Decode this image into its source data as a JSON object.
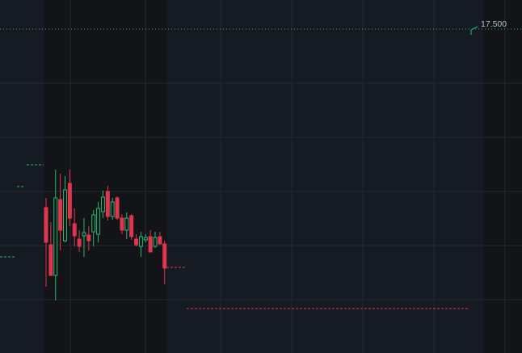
{
  "chart_data": {
    "type": "candlestick",
    "up_color": "#2bb673",
    "down_color": "#e0354f",
    "ylim": [
      15.495,
      17.68
    ],
    "price_line": {
      "value": 17.5,
      "label": "17.500"
    },
    "open": [
      16.395,
      16.165,
      15.975,
      16.445,
      16.19,
      16.545,
      16.295,
      16.2,
      16.22,
      16.225,
      16.245,
      16.23,
      16.37,
      16.495,
      16.34,
      16.455,
      16.33,
      16.255,
      16.345,
      16.2,
      16.155,
      16.195,
      16.215,
      16.155,
      16.215,
      16.17
    ],
    "high": [
      16.455,
      16.305,
      16.63,
      16.605,
      16.59,
      16.63,
      16.39,
      16.255,
      16.33,
      16.28,
      16.38,
      16.43,
      16.5,
      16.53,
      16.455,
      16.465,
      16.355,
      16.365,
      16.355,
      16.23,
      16.245,
      16.23,
      16.255,
      16.245,
      16.245,
      16.19
    ],
    "low": [
      15.905,
      15.975,
      15.82,
      16.13,
      16.18,
      16.28,
      16.155,
      16.12,
      16.09,
      16.13,
      16.155,
      16.18,
      16.33,
      16.315,
      16.32,
      16.32,
      16.23,
      16.2,
      16.195,
      16.155,
      16.09,
      16.18,
      16.12,
      16.145,
      16.165,
      15.92
    ],
    "close": [
      16.18,
      15.975,
      16.455,
      16.255,
      16.505,
      16.33,
      16.22,
      16.155,
      16.24,
      16.19,
      16.35,
      16.39,
      16.46,
      16.34,
      16.43,
      16.33,
      16.255,
      16.33,
      16.215,
      16.165,
      16.215,
      16.21,
      16.12,
      16.21,
      16.17,
      16.02
    ]
  }
}
